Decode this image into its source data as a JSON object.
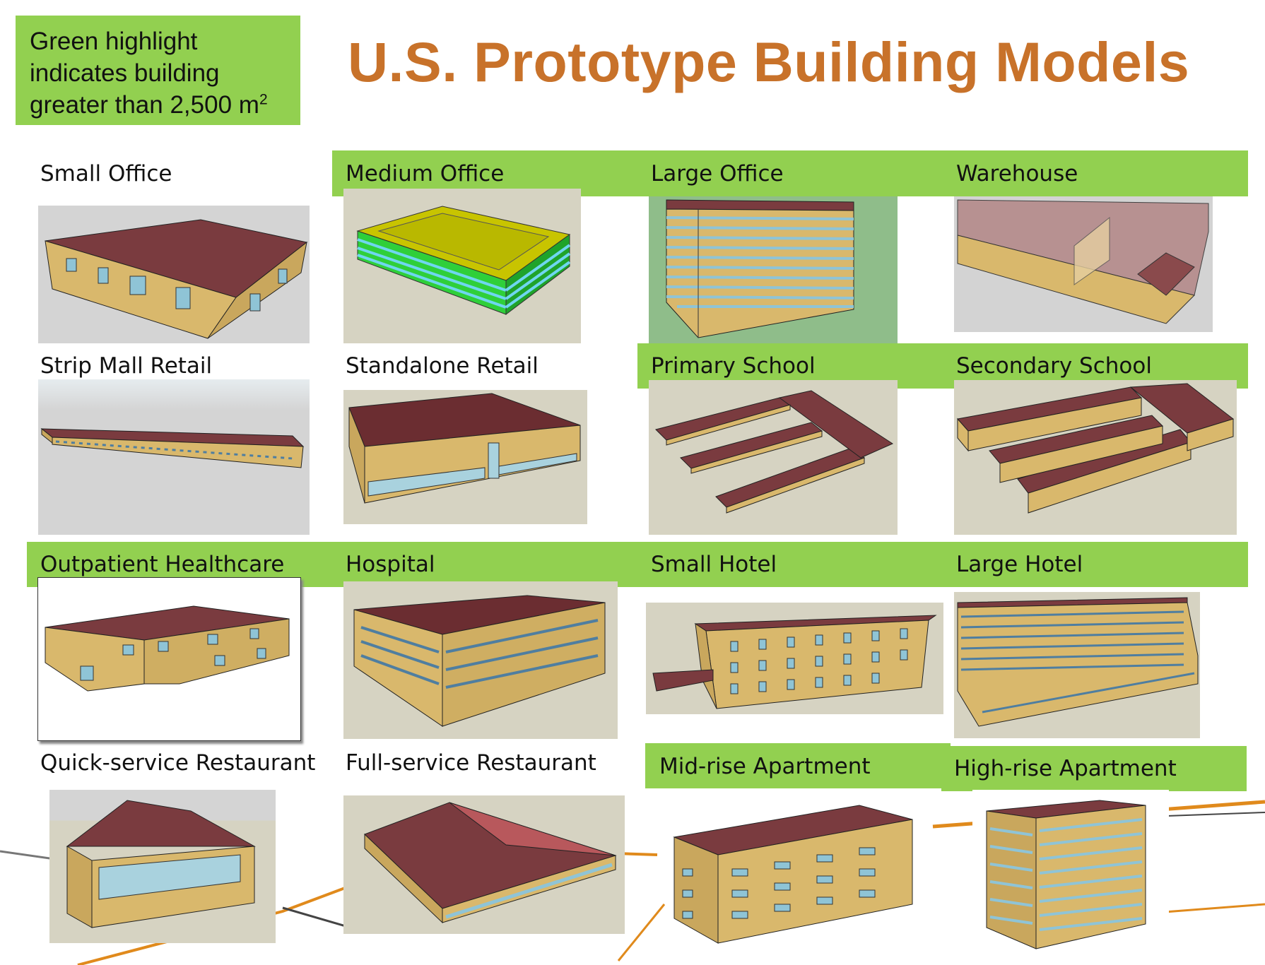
{
  "legend": {
    "text": "Green highlight indicates building greater than 2,500 m",
    "superscript": "2"
  },
  "title": "U.S. Prototype Building Models",
  "highlight_color": "#92d050",
  "roof_color": "#7a3b3f",
  "wall_color": "#d9b86c",
  "buildings": [
    {
      "name": "Small Office",
      "highlighted": false
    },
    {
      "name": "Medium Office",
      "highlighted": true
    },
    {
      "name": "Large Office",
      "highlighted": true
    },
    {
      "name": "Warehouse",
      "highlighted": true
    },
    {
      "name": "Strip Mall Retail",
      "highlighted": false
    },
    {
      "name": "Standalone Retail",
      "highlighted": false
    },
    {
      "name": "Primary School",
      "highlighted": true
    },
    {
      "name": "Secondary School",
      "highlighted": true
    },
    {
      "name": "Outpatient Healthcare",
      "highlighted": true
    },
    {
      "name": "Hospital",
      "highlighted": true
    },
    {
      "name": "Small Hotel",
      "highlighted": true
    },
    {
      "name": "Large Hotel",
      "highlighted": true
    },
    {
      "name": "Quick-service Restaurant",
      "highlighted": false
    },
    {
      "name": "Full-service Restaurant",
      "highlighted": false
    },
    {
      "name": "Mid-rise Apartment",
      "highlighted": true
    },
    {
      "name": "High-rise Apartment",
      "highlighted": true
    }
  ]
}
